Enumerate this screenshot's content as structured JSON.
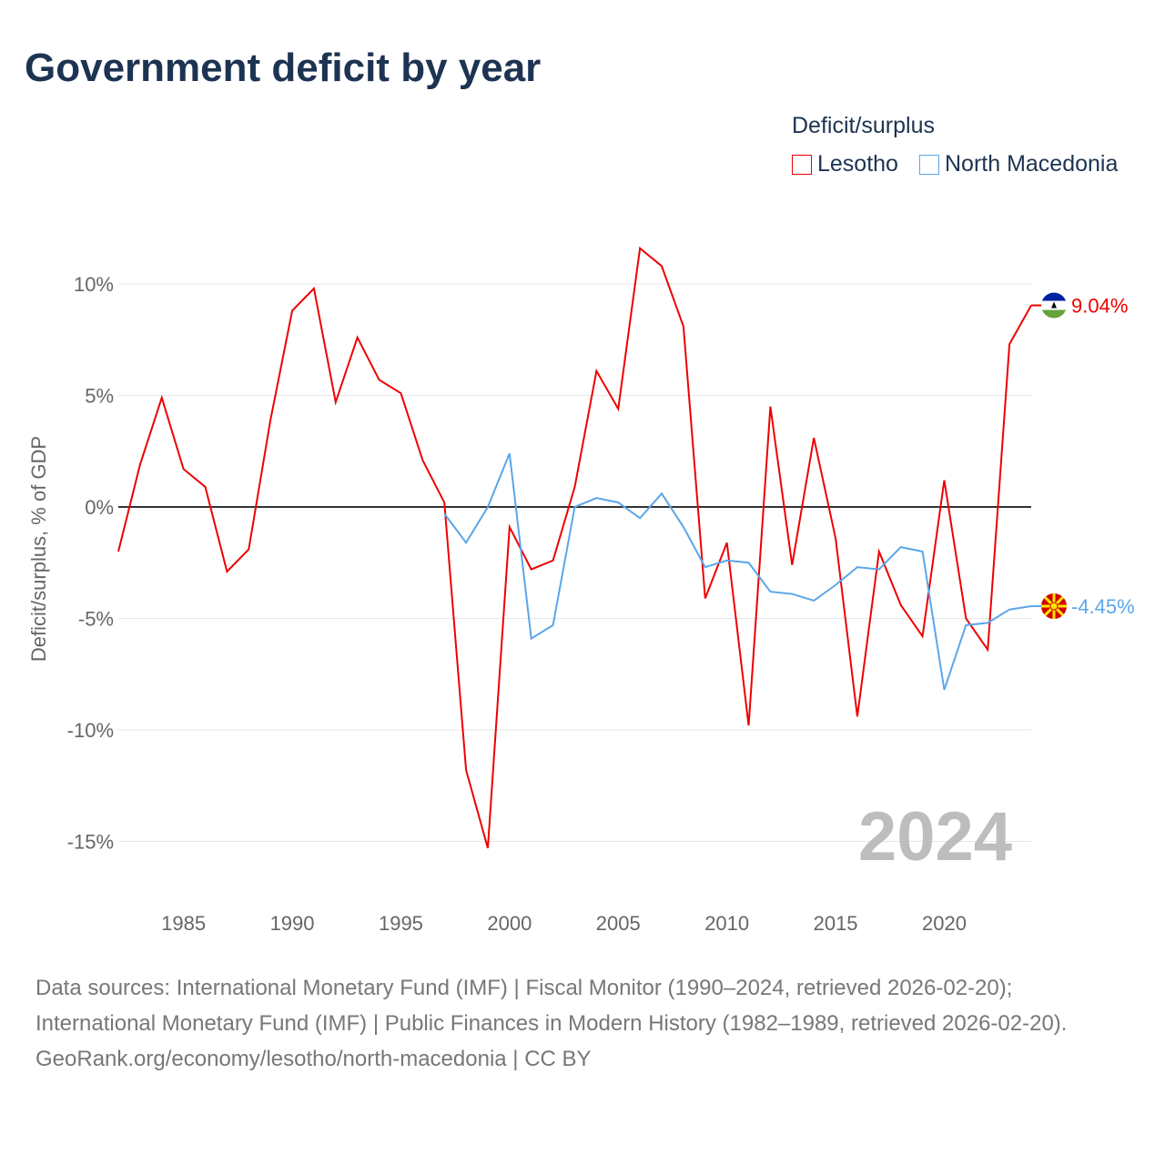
{
  "title": "Government deficit by year",
  "colors": {
    "Lesotho": "#ee0000",
    "North Macedonia": "#5aa6ea"
  },
  "chart_data": {
    "type": "line",
    "title": "Government deficit by year",
    "ylabel": "Deficit/surplus, % of GDP",
    "xlabel": "",
    "legend_title": "Deficit/surplus",
    "legend_position": "top-right",
    "ylim": [
      -16,
      12.5
    ],
    "xlim": [
      1982,
      2024
    ],
    "yticks": [
      10,
      5,
      0,
      -5,
      -10,
      -15
    ],
    "ytick_labels": [
      "10%",
      "5%",
      "0%",
      "-5%",
      "-10%",
      "-15%"
    ],
    "xticks": [
      1985,
      1990,
      1995,
      2000,
      2005,
      2010,
      2015,
      2020
    ],
    "xtick_labels": [
      "1985",
      "1990",
      "1995",
      "2000",
      "2005",
      "2010",
      "2015",
      "2020"
    ],
    "watermark_year": "2024",
    "series": [
      {
        "name": "Lesotho",
        "end_label": "9.04%",
        "x": [
          1982,
          1983,
          1984,
          1985,
          1986,
          1987,
          1988,
          1989,
          1990,
          1991,
          1992,
          1993,
          1994,
          1995,
          1996,
          1997,
          1998,
          1999,
          2000,
          2001,
          2002,
          2003,
          2004,
          2005,
          2006,
          2007,
          2008,
          2009,
          2010,
          2011,
          2012,
          2013,
          2014,
          2015,
          2016,
          2017,
          2018,
          2019,
          2020,
          2021,
          2022,
          2023,
          2024
        ],
        "values": [
          -2.0,
          1.9,
          4.9,
          1.7,
          0.9,
          -2.9,
          -1.9,
          3.9,
          8.8,
          9.8,
          4.7,
          7.6,
          5.7,
          5.1,
          2.1,
          0.2,
          -11.8,
          -15.3,
          -0.9,
          -2.8,
          -2.4,
          0.9,
          6.1,
          4.4,
          11.6,
          10.8,
          8.1,
          -4.1,
          -1.6,
          -9.8,
          4.5,
          -2.6,
          3.1,
          -1.4,
          -9.4,
          -2.0,
          -4.4,
          -5.8,
          1.2,
          -5.0,
          -6.4,
          7.3,
          9.04
        ]
      },
      {
        "name": "North Macedonia",
        "end_label": "-4.45%",
        "x": [
          1997,
          1998,
          1999,
          2000,
          2001,
          2002,
          2003,
          2004,
          2005,
          2006,
          2007,
          2008,
          2009,
          2010,
          2011,
          2012,
          2013,
          2014,
          2015,
          2016,
          2017,
          2018,
          2019,
          2020,
          2021,
          2022,
          2023,
          2024
        ],
        "values": [
          -0.3,
          -1.6,
          0.0,
          2.4,
          -5.9,
          -5.3,
          0.0,
          0.4,
          0.2,
          -0.5,
          0.6,
          -0.9,
          -2.7,
          -2.4,
          -2.5,
          -3.8,
          -3.9,
          -4.2,
          -3.5,
          -2.7,
          -2.8,
          -1.8,
          -2.0,
          -8.2,
          -5.3,
          -5.2,
          -4.6,
          -4.45
        ]
      }
    ]
  },
  "sources": {
    "line1": "Data sources: International Monetary Fund (IMF) | Fiscal Monitor (1990–2024, retrieved 2026-02-20); International Monetary Fund (IMF) | Public Finances in Modern History (1982–1989, retrieved 2026-02-20).",
    "line2": "GeoRank.org/economy/lesotho/north-macedonia | CC BY"
  }
}
